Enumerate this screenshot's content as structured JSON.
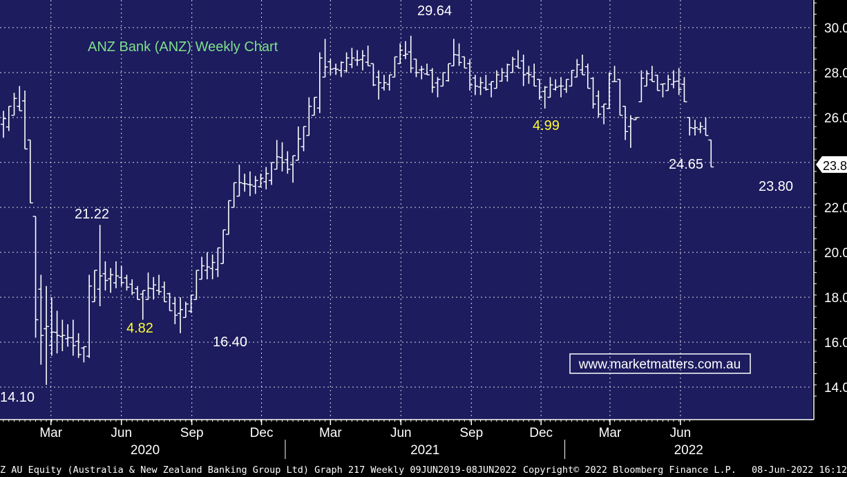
{
  "colors": {
    "plot_bg": "#1c1c5e",
    "page_bg": "#000000",
    "grid": "#ffffff",
    "bars": "#ffffff",
    "title": "#7fe08a",
    "yellow": "#ffff33",
    "label": "#ffffff",
    "website": "#ffffff"
  },
  "header": {
    "chart_title": "ANZ Bank (ANZ) Weekly Chart",
    "website": "www.marketmatters.com.au"
  },
  "footer": {
    "description": "Z AU Equity (Australia & New Zealand Banking Group Ltd) Graph 217  Weekly 09JUN2019-08JUN2022",
    "copyright": "Copyright© 2022 Bloomberg Finance L.P.",
    "timestamp": "08-Jun-2022 16:12"
  },
  "chart_data": {
    "type": "ohlc-bar",
    "title": "ANZ Bank (ANZ) Weekly Chart",
    "ylim": [
      13.6,
      31.2
    ],
    "y_ticks": [
      "14.0",
      "16.0",
      "18.0",
      "20.0",
      "22.0",
      "24.0",
      "26.0",
      "28.0",
      "30.0"
    ],
    "x_months": [
      "Mar",
      "Jun",
      "Sep",
      "Dec",
      "Mar",
      "Jun",
      "Sep",
      "Dec",
      "Mar",
      "Jun"
    ],
    "x_years": [
      "2020",
      "2021",
      "2022"
    ],
    "last_price": "23.8",
    "annotations": [
      {
        "text": "29.64",
        "color": "white"
      },
      {
        "text": "21.22",
        "color": "white"
      },
      {
        "text": "4.82",
        "color": "yellow"
      },
      {
        "text": "16.40",
        "color": "white"
      },
      {
        "text": "14.10",
        "color": "white"
      },
      {
        "text": "4.99",
        "color": "yellow"
      },
      {
        "text": "24.65",
        "color": "white"
      },
      {
        "text": "23.80",
        "color": "white"
      }
    ],
    "weeks": {
      "start_date": "2019-12-30",
      "interval": "weekly",
      "hl": [
        [
          26.3,
          25.1
        ],
        [
          26.5,
          25.4
        ],
        [
          27.1,
          26.1
        ],
        [
          27.4,
          26.3
        ],
        [
          27.2,
          24.6
        ],
        [
          25.0,
          22.2
        ],
        [
          21.6,
          16.2
        ],
        [
          19.0,
          15.0
        ],
        [
          18.5,
          14.1
        ],
        [
          18.0,
          15.4
        ],
        [
          17.4,
          15.5
        ],
        [
          17.0,
          15.6
        ],
        [
          16.8,
          15.8
        ],
        [
          17.0,
          15.4
        ],
        [
          16.4,
          15.3
        ],
        [
          15.8,
          15.1
        ],
        [
          19.0,
          15.3
        ],
        [
          19.2,
          17.8
        ],
        [
          21.22,
          17.6
        ],
        [
          19.6,
          18.3
        ],
        [
          19.3,
          18.2
        ],
        [
          19.6,
          18.4
        ],
        [
          19.4,
          18.5
        ],
        [
          19.0,
          18.3
        ],
        [
          18.8,
          18.1
        ],
        [
          18.5,
          17.9
        ],
        [
          18.3,
          17.0
        ],
        [
          19.1,
          17.9
        ],
        [
          18.9,
          17.9
        ],
        [
          19.0,
          18.1
        ],
        [
          18.7,
          17.8
        ],
        [
          18.2,
          17.4
        ],
        [
          18.0,
          16.8
        ],
        [
          18.0,
          16.4
        ],
        [
          17.8,
          17.1
        ],
        [
          18.1,
          17.3
        ],
        [
          19.2,
          17.9
        ],
        [
          19.8,
          18.8
        ],
        [
          20.0,
          18.8
        ],
        [
          19.9,
          18.8
        ],
        [
          20.2,
          18.9
        ],
        [
          21.0,
          19.5
        ],
        [
          22.3,
          20.8
        ],
        [
          23.1,
          22.0
        ],
        [
          23.9,
          22.5
        ],
        [
          23.5,
          22.7
        ],
        [
          23.6,
          22.5
        ],
        [
          23.4,
          22.6
        ],
        [
          23.5,
          22.9
        ],
        [
          23.8,
          22.8
        ],
        [
          24.0,
          23.0
        ],
        [
          25.0,
          23.7
        ],
        [
          24.9,
          23.6
        ],
        [
          24.5,
          23.5
        ],
        [
          24.3,
          23.1
        ],
        [
          25.6,
          24.1
        ],
        [
          25.6,
          24.5
        ],
        [
          26.9,
          25.2
        ],
        [
          26.9,
          26.1
        ],
        [
          28.9,
          26.2
        ],
        [
          29.5,
          27.8
        ],
        [
          28.6,
          27.9
        ],
        [
          28.4,
          27.9
        ],
        [
          28.5,
          27.8
        ],
        [
          28.9,
          28.0
        ],
        [
          29.1,
          28.2
        ],
        [
          29.0,
          28.3
        ],
        [
          29.0,
          28.1
        ],
        [
          29.2,
          28.3
        ],
        [
          28.4,
          27.4
        ],
        [
          28.1,
          26.8
        ],
        [
          27.9,
          27.2
        ],
        [
          27.9,
          27.2
        ],
        [
          28.7,
          27.8
        ],
        [
          29.3,
          28.4
        ],
        [
          29.4,
          28.6
        ],
        [
          29.64,
          28.0
        ],
        [
          28.6,
          27.8
        ],
        [
          28.3,
          27.7
        ],
        [
          28.4,
          27.9
        ],
        [
          28.2,
          27.1
        ],
        [
          27.8,
          26.9
        ],
        [
          28.0,
          27.4
        ],
        [
          28.4,
          27.6
        ],
        [
          29.5,
          28.3
        ],
        [
          29.3,
          28.3
        ],
        [
          28.7,
          28.2
        ],
        [
          28.6,
          27.2
        ],
        [
          27.9,
          27.0
        ],
        [
          27.8,
          27.0
        ],
        [
          27.9,
          27.2
        ],
        [
          27.6,
          26.9
        ],
        [
          28.1,
          27.3
        ],
        [
          28.2,
          27.6
        ],
        [
          28.4,
          27.6
        ],
        [
          28.7,
          28.0
        ],
        [
          29.0,
          28.2
        ],
        [
          28.8,
          27.4
        ],
        [
          28.3,
          27.5
        ],
        [
          28.4,
          27.4
        ],
        [
          27.7,
          26.8
        ],
        [
          27.4,
          26.4
        ],
        [
          27.8,
          26.9
        ],
        [
          27.7,
          27.2
        ],
        [
          27.8,
          26.9
        ],
        [
          27.7,
          27.1
        ],
        [
          28.1,
          27.4
        ],
        [
          28.6,
          27.8
        ],
        [
          28.8,
          27.9
        ],
        [
          28.4,
          27.3
        ],
        [
          27.8,
          26.4
        ],
        [
          27.2,
          26.0
        ],
        [
          26.6,
          25.7
        ],
        [
          28.0,
          26.4
        ],
        [
          28.3,
          27.6
        ],
        [
          27.7,
          26.1
        ],
        [
          26.5,
          25.0
        ],
        [
          26.1,
          24.65
        ],
        [
          26.0,
          25.9
        ],
        [
          28.1,
          26.7
        ],
        [
          28.1,
          27.4
        ],
        [
          28.3,
          27.6
        ],
        [
          27.9,
          27.2
        ],
        [
          27.5,
          26.9
        ],
        [
          27.9,
          27.2
        ],
        [
          28.1,
          27.3
        ],
        [
          28.2,
          27.0
        ],
        [
          27.8,
          26.7
        ],
        [
          26.0,
          25.2
        ],
        [
          25.9,
          25.2
        ],
        [
          25.8,
          25.3
        ],
        [
          26.0,
          25.2
        ],
        [
          25.0,
          23.8
        ]
      ]
    }
  }
}
